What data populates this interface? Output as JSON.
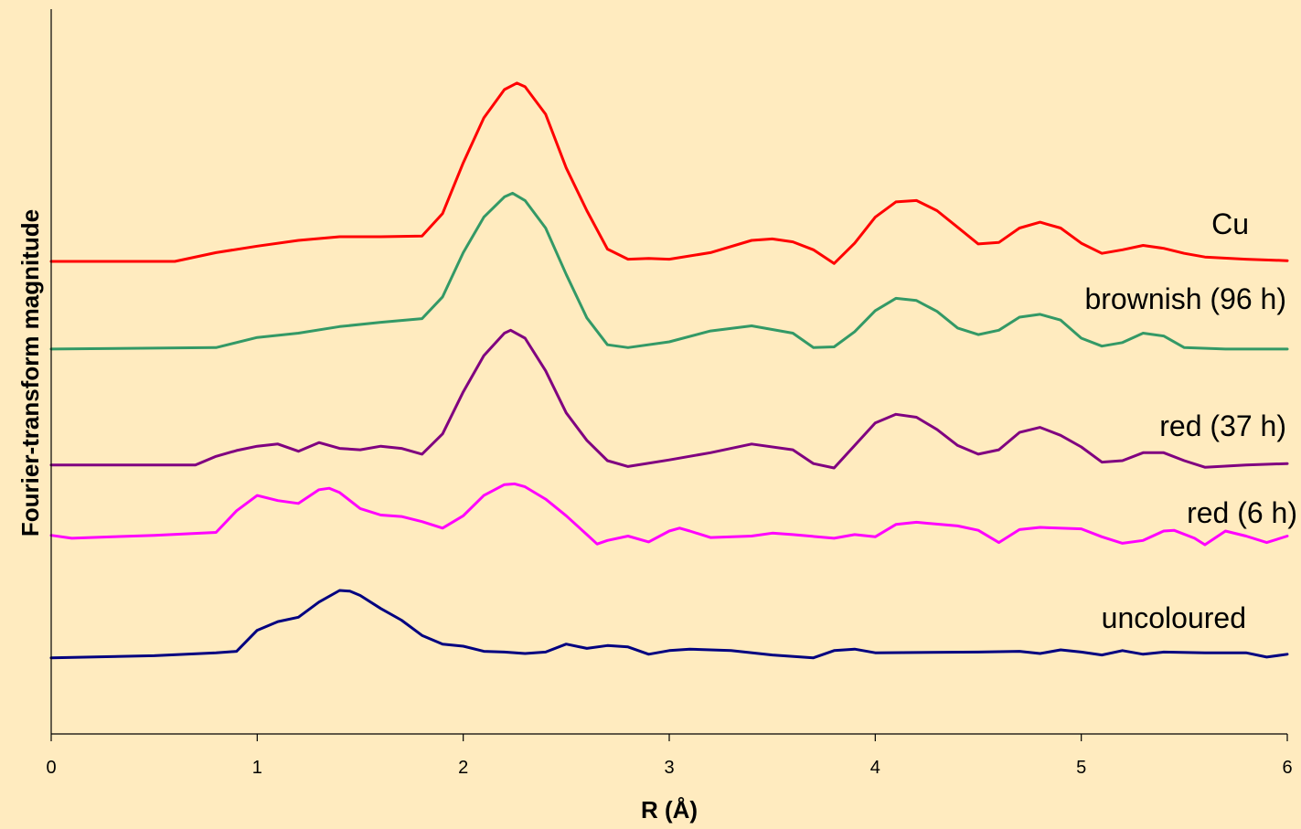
{
  "chart_data": {
    "type": "line",
    "title": "",
    "xlabel": "R (Å)",
    "ylabel": "Fourier-transform magnitude",
    "xlim": [
      0,
      6
    ],
    "ylim": [
      0,
      1
    ],
    "x_ticks": [
      "0",
      "1",
      "2",
      "3",
      "4",
      "5",
      "6"
    ],
    "y_ticks": [],
    "grid": false,
    "legend": "inline labels at right end of each curve",
    "series": [
      {
        "name": "Cu",
        "color": "#FF0000",
        "points": [
          [
            0,
            0.652
          ],
          [
            0.6,
            0.652
          ],
          [
            0.8,
            0.664
          ],
          [
            1.0,
            0.673
          ],
          [
            1.2,
            0.681
          ],
          [
            1.4,
            0.686
          ],
          [
            1.6,
            0.686
          ],
          [
            1.8,
            0.687
          ],
          [
            1.9,
            0.718
          ],
          [
            2.0,
            0.788
          ],
          [
            2.1,
            0.85
          ],
          [
            2.2,
            0.889
          ],
          [
            2.26,
            0.898
          ],
          [
            2.3,
            0.893
          ],
          [
            2.4,
            0.855
          ],
          [
            2.5,
            0.781
          ],
          [
            2.6,
            0.722
          ],
          [
            2.7,
            0.669
          ],
          [
            2.8,
            0.655
          ],
          [
            2.9,
            0.656
          ],
          [
            3.0,
            0.655
          ],
          [
            3.2,
            0.664
          ],
          [
            3.4,
            0.681
          ],
          [
            3.5,
            0.683
          ],
          [
            3.6,
            0.679
          ],
          [
            3.7,
            0.668
          ],
          [
            3.8,
            0.649
          ],
          [
            3.9,
            0.677
          ],
          [
            4.0,
            0.713
          ],
          [
            4.1,
            0.734
          ],
          [
            4.2,
            0.736
          ],
          [
            4.3,
            0.722
          ],
          [
            4.4,
            0.699
          ],
          [
            4.5,
            0.676
          ],
          [
            4.6,
            0.678
          ],
          [
            4.7,
            0.698
          ],
          [
            4.8,
            0.706
          ],
          [
            4.9,
            0.698
          ],
          [
            5.0,
            0.677
          ],
          [
            5.1,
            0.663
          ],
          [
            5.2,
            0.668
          ],
          [
            5.3,
            0.674
          ],
          [
            5.4,
            0.67
          ],
          [
            5.5,
            0.663
          ],
          [
            5.6,
            0.658
          ],
          [
            5.8,
            0.655
          ],
          [
            6.0,
            0.653
          ]
        ]
      },
      {
        "name": "brownish (96 h)",
        "color": "#339966",
        "points": [
          [
            0,
            0.531
          ],
          [
            0.8,
            0.533
          ],
          [
            1.0,
            0.547
          ],
          [
            1.2,
            0.553
          ],
          [
            1.4,
            0.562
          ],
          [
            1.6,
            0.568
          ],
          [
            1.8,
            0.573
          ],
          [
            1.9,
            0.603
          ],
          [
            2.0,
            0.664
          ],
          [
            2.1,
            0.713
          ],
          [
            2.2,
            0.741
          ],
          [
            2.24,
            0.746
          ],
          [
            2.3,
            0.736
          ],
          [
            2.4,
            0.698
          ],
          [
            2.5,
            0.634
          ],
          [
            2.6,
            0.574
          ],
          [
            2.7,
            0.537
          ],
          [
            2.8,
            0.533
          ],
          [
            3.0,
            0.541
          ],
          [
            3.2,
            0.556
          ],
          [
            3.4,
            0.563
          ],
          [
            3.6,
            0.553
          ],
          [
            3.7,
            0.533
          ],
          [
            3.8,
            0.534
          ],
          [
            3.9,
            0.555
          ],
          [
            4.0,
            0.584
          ],
          [
            4.1,
            0.601
          ],
          [
            4.2,
            0.598
          ],
          [
            4.3,
            0.583
          ],
          [
            4.4,
            0.56
          ],
          [
            4.5,
            0.551
          ],
          [
            4.6,
            0.557
          ],
          [
            4.7,
            0.575
          ],
          [
            4.8,
            0.579
          ],
          [
            4.9,
            0.571
          ],
          [
            5.0,
            0.546
          ],
          [
            5.1,
            0.535
          ],
          [
            5.2,
            0.54
          ],
          [
            5.3,
            0.553
          ],
          [
            5.4,
            0.549
          ],
          [
            5.5,
            0.533
          ],
          [
            5.7,
            0.531
          ],
          [
            6.0,
            0.531
          ]
        ]
      },
      {
        "name": "red (37 h)",
        "color": "#800080",
        "points": [
          [
            0,
            0.371
          ],
          [
            0.7,
            0.371
          ],
          [
            0.8,
            0.383
          ],
          [
            0.9,
            0.391
          ],
          [
            1.0,
            0.397
          ],
          [
            1.1,
            0.4
          ],
          [
            1.2,
            0.39
          ],
          [
            1.3,
            0.402
          ],
          [
            1.4,
            0.394
          ],
          [
            1.5,
            0.392
          ],
          [
            1.6,
            0.397
          ],
          [
            1.7,
            0.394
          ],
          [
            1.8,
            0.386
          ],
          [
            1.9,
            0.414
          ],
          [
            2.0,
            0.472
          ],
          [
            2.1,
            0.522
          ],
          [
            2.2,
            0.553
          ],
          [
            2.23,
            0.557
          ],
          [
            2.3,
            0.546
          ],
          [
            2.4,
            0.501
          ],
          [
            2.5,
            0.443
          ],
          [
            2.6,
            0.405
          ],
          [
            2.7,
            0.377
          ],
          [
            2.8,
            0.369
          ],
          [
            3.0,
            0.378
          ],
          [
            3.2,
            0.388
          ],
          [
            3.4,
            0.4
          ],
          [
            3.6,
            0.392
          ],
          [
            3.7,
            0.373
          ],
          [
            3.8,
            0.367
          ],
          [
            3.9,
            0.398
          ],
          [
            4.0,
            0.429
          ],
          [
            4.1,
            0.441
          ],
          [
            4.2,
            0.437
          ],
          [
            4.3,
            0.42
          ],
          [
            4.4,
            0.398
          ],
          [
            4.5,
            0.386
          ],
          [
            4.6,
            0.392
          ],
          [
            4.7,
            0.416
          ],
          [
            4.8,
            0.423
          ],
          [
            4.9,
            0.412
          ],
          [
            5.0,
            0.396
          ],
          [
            5.1,
            0.375
          ],
          [
            5.2,
            0.377
          ],
          [
            5.3,
            0.388
          ],
          [
            5.4,
            0.388
          ],
          [
            5.5,
            0.377
          ],
          [
            5.6,
            0.368
          ],
          [
            5.8,
            0.371
          ],
          [
            6.0,
            0.373
          ]
        ]
      },
      {
        "name": "red (6 h)",
        "color": "#FF00FF",
        "points": [
          [
            0,
            0.274
          ],
          [
            0.1,
            0.27
          ],
          [
            0.3,
            0.272
          ],
          [
            0.5,
            0.274
          ],
          [
            0.8,
            0.278
          ],
          [
            0.9,
            0.308
          ],
          [
            1.0,
            0.329
          ],
          [
            1.1,
            0.322
          ],
          [
            1.2,
            0.318
          ],
          [
            1.3,
            0.337
          ],
          [
            1.35,
            0.339
          ],
          [
            1.4,
            0.333
          ],
          [
            1.5,
            0.311
          ],
          [
            1.6,
            0.302
          ],
          [
            1.7,
            0.3
          ],
          [
            1.8,
            0.293
          ],
          [
            1.9,
            0.284
          ],
          [
            2.0,
            0.301
          ],
          [
            2.1,
            0.329
          ],
          [
            2.2,
            0.344
          ],
          [
            2.25,
            0.345
          ],
          [
            2.3,
            0.341
          ],
          [
            2.4,
            0.324
          ],
          [
            2.5,
            0.301
          ],
          [
            2.6,
            0.275
          ],
          [
            2.65,
            0.262
          ],
          [
            2.7,
            0.267
          ],
          [
            2.8,
            0.273
          ],
          [
            2.9,
            0.265
          ],
          [
            3.0,
            0.28
          ],
          [
            3.05,
            0.284
          ],
          [
            3.1,
            0.28
          ],
          [
            3.2,
            0.271
          ],
          [
            3.4,
            0.273
          ],
          [
            3.5,
            0.277
          ],
          [
            3.6,
            0.275
          ],
          [
            3.8,
            0.27
          ],
          [
            3.9,
            0.275
          ],
          [
            4.0,
            0.272
          ],
          [
            4.1,
            0.289
          ],
          [
            4.2,
            0.292
          ],
          [
            4.4,
            0.287
          ],
          [
            4.5,
            0.281
          ],
          [
            4.6,
            0.264
          ],
          [
            4.7,
            0.282
          ],
          [
            4.8,
            0.285
          ],
          [
            5.0,
            0.283
          ],
          [
            5.1,
            0.272
          ],
          [
            5.2,
            0.263
          ],
          [
            5.3,
            0.267
          ],
          [
            5.4,
            0.28
          ],
          [
            5.45,
            0.281
          ],
          [
            5.55,
            0.27
          ],
          [
            5.6,
            0.261
          ],
          [
            5.7,
            0.28
          ],
          [
            5.8,
            0.273
          ],
          [
            5.9,
            0.264
          ],
          [
            6.0,
            0.273
          ]
        ]
      },
      {
        "name": "uncoloured",
        "color": "#000080",
        "points": [
          [
            0,
            0.105
          ],
          [
            0.5,
            0.108
          ],
          [
            0.8,
            0.112
          ],
          [
            0.9,
            0.114
          ],
          [
            1.0,
            0.143
          ],
          [
            1.1,
            0.155
          ],
          [
            1.2,
            0.161
          ],
          [
            1.3,
            0.182
          ],
          [
            1.4,
            0.198
          ],
          [
            1.45,
            0.197
          ],
          [
            1.5,
            0.191
          ],
          [
            1.6,
            0.173
          ],
          [
            1.7,
            0.157
          ],
          [
            1.8,
            0.136
          ],
          [
            1.9,
            0.124
          ],
          [
            2.0,
            0.121
          ],
          [
            2.1,
            0.114
          ],
          [
            2.2,
            0.113
          ],
          [
            2.3,
            0.111
          ],
          [
            2.4,
            0.113
          ],
          [
            2.5,
            0.124
          ],
          [
            2.6,
            0.118
          ],
          [
            2.7,
            0.122
          ],
          [
            2.8,
            0.12
          ],
          [
            2.9,
            0.11
          ],
          [
            3.0,
            0.115
          ],
          [
            3.1,
            0.117
          ],
          [
            3.3,
            0.115
          ],
          [
            3.5,
            0.109
          ],
          [
            3.7,
            0.105
          ],
          [
            3.8,
            0.115
          ],
          [
            3.9,
            0.117
          ],
          [
            4.0,
            0.112
          ],
          [
            4.5,
            0.113
          ],
          [
            4.7,
            0.114
          ],
          [
            4.8,
            0.111
          ],
          [
            4.9,
            0.116
          ],
          [
            5.0,
            0.113
          ],
          [
            5.1,
            0.109
          ],
          [
            5.2,
            0.115
          ],
          [
            5.3,
            0.11
          ],
          [
            5.4,
            0.113
          ],
          [
            5.6,
            0.112
          ],
          [
            5.8,
            0.112
          ],
          [
            5.9,
            0.106
          ],
          [
            6.0,
            0.11
          ]
        ]
      }
    ]
  },
  "labels": {
    "cu": "Cu",
    "brownish": "brownish (96 h)",
    "red37": "red (37 h)",
    "red6": "red (6 h)",
    "uncoloured": "uncoloured"
  }
}
